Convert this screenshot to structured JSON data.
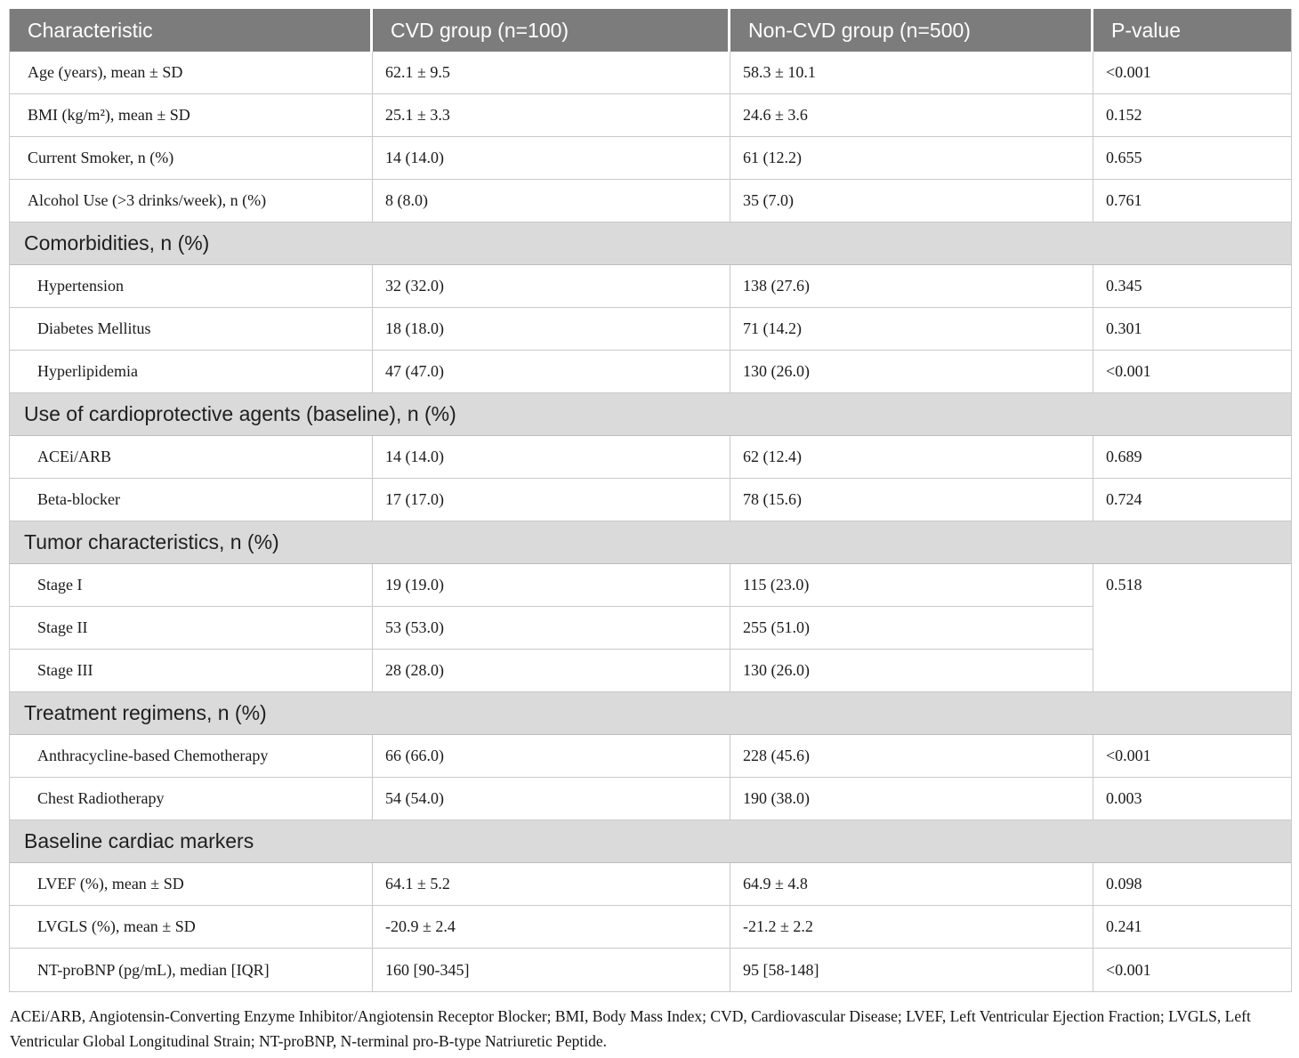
{
  "colors": {
    "header_bg": "#7c7c7c",
    "header_text": "#ffffff",
    "section_bg": "#dadada",
    "row_border": "#c9c9c9",
    "body_text": "#1a1a1a"
  },
  "table": {
    "columns": [
      "Characteristic",
      "CVD group (n=100)",
      "Non-CVD group (n=500)",
      "P-value"
    ],
    "rows": [
      {
        "type": "data",
        "indent": false,
        "cells": [
          "Age (years), mean ± SD",
          "62.1 ± 9.5",
          "58.3 ± 10.1",
          "<0.001"
        ]
      },
      {
        "type": "data",
        "indent": false,
        "cells": [
          "BMI (kg/m²), mean ± SD",
          "25.1 ± 3.3",
          "24.6 ± 3.6",
          "0.152"
        ]
      },
      {
        "type": "data",
        "indent": false,
        "cells": [
          "Current Smoker, n (%)",
          "14 (14.0)",
          "61 (12.2)",
          "0.655"
        ]
      },
      {
        "type": "data",
        "indent": false,
        "cells": [
          "Alcohol Use (>3 drinks/week), n (%)",
          "8 (8.0)",
          "35 (7.0)",
          "0.761"
        ]
      },
      {
        "type": "section",
        "label": "Comorbidities, n (%)"
      },
      {
        "type": "data",
        "indent": true,
        "cells": [
          "Hypertension",
          "32 (32.0)",
          "138 (27.6)",
          "0.345"
        ]
      },
      {
        "type": "data",
        "indent": true,
        "cells": [
          "Diabetes Mellitus",
          "18 (18.0)",
          "71 (14.2)",
          "0.301"
        ]
      },
      {
        "type": "data",
        "indent": true,
        "cells": [
          "Hyperlipidemia",
          "47 (47.0)",
          "130 (26.0)",
          "<0.001"
        ]
      },
      {
        "type": "section",
        "label": "Use of cardioprotective agents (baseline), n (%)"
      },
      {
        "type": "data",
        "indent": true,
        "cells": [
          "ACEi/ARB",
          "14 (14.0)",
          "62 (12.4)",
          "0.689"
        ]
      },
      {
        "type": "data",
        "indent": true,
        "cells": [
          "Beta-blocker",
          "17 (17.0)",
          "78 (15.6)",
          "0.724"
        ]
      },
      {
        "type": "section",
        "label": "Tumor characteristics, n (%)"
      },
      {
        "type": "data",
        "indent": true,
        "cells": [
          "Stage I",
          "19 (19.0)",
          "115 (23.0)",
          "0.518"
        ],
        "pvalue_rowspan": 3
      },
      {
        "type": "data",
        "indent": true,
        "cells": [
          "Stage II",
          "53 (53.0)",
          "255 (51.0)"
        ]
      },
      {
        "type": "data",
        "indent": true,
        "cells": [
          "Stage III",
          "28 (28.0)",
          "130 (26.0)"
        ]
      },
      {
        "type": "section",
        "label": "Treatment regimens, n (%)"
      },
      {
        "type": "data",
        "indent": true,
        "cells": [
          "Anthracycline-based Chemotherapy",
          "66 (66.0)",
          "228 (45.6)",
          "<0.001"
        ]
      },
      {
        "type": "data",
        "indent": true,
        "cells": [
          "Chest Radiotherapy",
          "54 (54.0)",
          "190 (38.0)",
          "0.003"
        ]
      },
      {
        "type": "section",
        "label": "Baseline cardiac markers"
      },
      {
        "type": "data",
        "indent": true,
        "cells": [
          "LVEF (%), mean ± SD",
          "64.1 ± 5.2",
          "64.9 ± 4.8",
          "0.098"
        ]
      },
      {
        "type": "data",
        "indent": true,
        "cells": [
          "LVGLS (%), mean ± SD",
          "-20.9 ± 2.4",
          "-21.2 ± 2.2",
          "0.241"
        ]
      },
      {
        "type": "data",
        "indent": true,
        "cells": [
          "NT-proBNP (pg/mL), median [IQR]",
          "160 [90-345]",
          "95 [58-148]",
          "<0.001"
        ]
      }
    ]
  },
  "footnote": "ACEi/ARB, Angiotensin-Converting Enzyme Inhibitor/Angiotensin Receptor Blocker; BMI, Body Mass Index; CVD, Cardiovascular Disease; LVEF, Left Ventricular Ejection Fraction; LVGLS, Left Ventricular Global Longitudinal Strain; NT-proBNP, N-terminal pro-B-type Natriuretic Peptide."
}
